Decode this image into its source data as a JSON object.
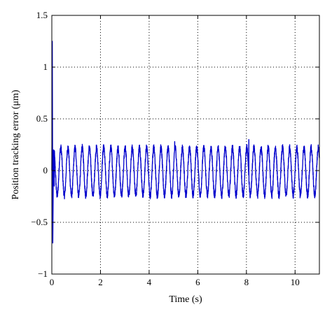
{
  "chart_data": {
    "type": "line",
    "title": "",
    "xlabel": "Time (s)",
    "ylabel": "Position tracking error (μm)",
    "xlim": [
      0,
      11
    ],
    "ylim": [
      -1,
      1.5
    ],
    "x_ticks": [
      0,
      2,
      4,
      6,
      8,
      10
    ],
    "y_ticks": [
      -1,
      -0.5,
      0,
      0.5,
      1,
      1.5
    ],
    "x_tick_labels": [
      "0",
      "2",
      "4",
      "6",
      "8",
      "10"
    ],
    "y_tick_labels": [
      "−1",
      "−0.5",
      "0",
      "0.5",
      "1",
      "1.5"
    ],
    "grid": true,
    "grid_style": "dotted",
    "series": [
      {
        "color": "#0000cc",
        "initial_spike": [
          {
            "x": 0.0,
            "y": 0.0
          },
          {
            "x": 0.02,
            "y": 1.25
          },
          {
            "x": 0.04,
            "y": -0.7
          },
          {
            "x": 0.07,
            "y": 0.2
          },
          {
            "x": 0.1,
            "y": -0.15
          }
        ],
        "oscillation": {
          "frequency_hz": 3.4,
          "amplitude": 0.23,
          "offset": -0.01,
          "noise_amplitude": 0.035,
          "x_start": 0.1,
          "x_end": 11
        },
        "spikes": [
          {
            "x": 8.1,
            "y": 0.3
          },
          {
            "x": 5.05,
            "y": 0.28
          }
        ]
      }
    ]
  }
}
